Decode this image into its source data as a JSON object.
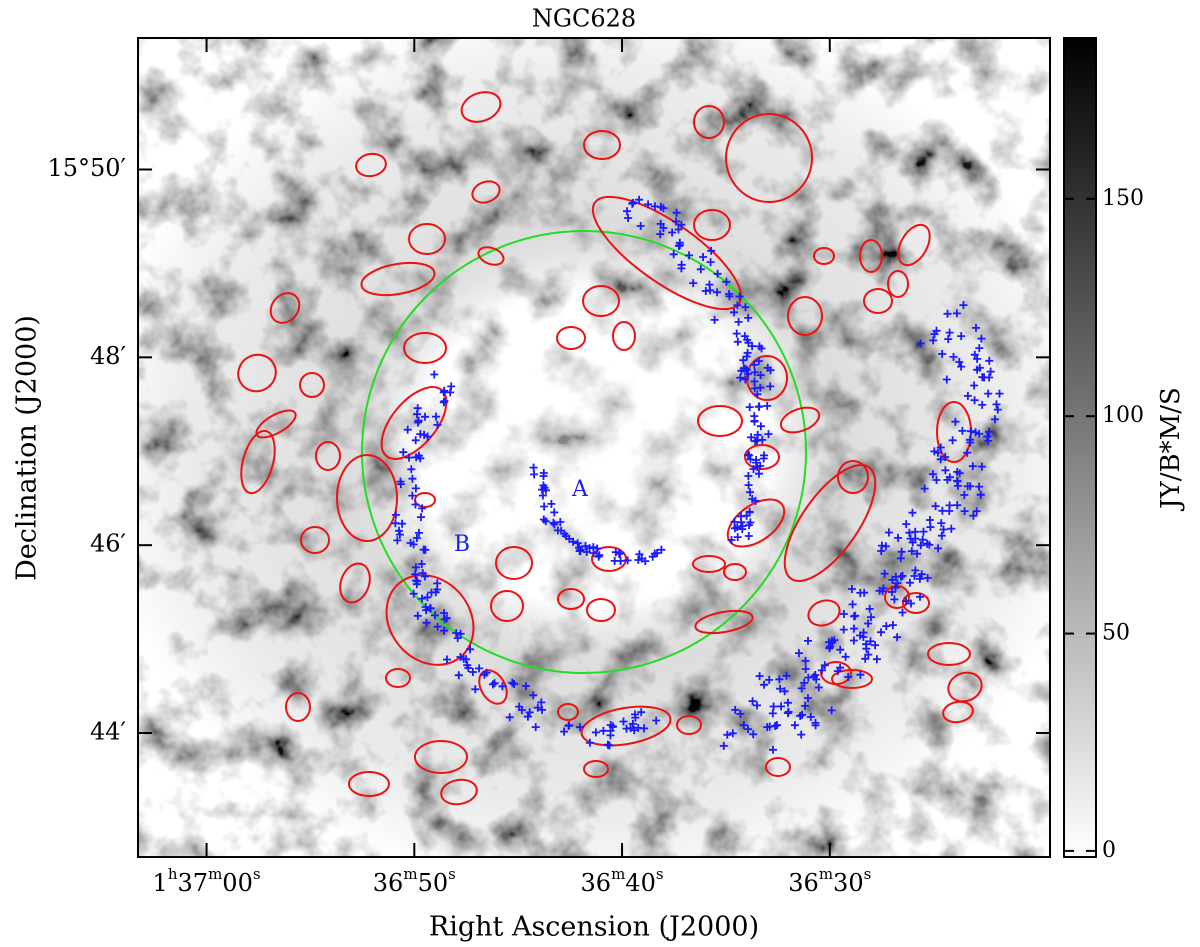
{
  "chart_data": {
    "type": "image",
    "title": "NGC628",
    "x_label": "Right Ascension (J2000)",
    "y_label": "Declination (J2000)",
    "colorbar_label": "JY/B*M/S",
    "xlim": [
      63.3,
      19.4
    ],
    "xticks": [
      {
        "value": 60,
        "label": "1h37m00s"
      },
      {
        "value": 50,
        "label": "36m50s"
      },
      {
        "value": 40,
        "label": "36m40s"
      },
      {
        "value": 30,
        "label": "36m30s"
      }
    ],
    "ylim": [
      42.68,
      51.4
    ],
    "yticks": [
      {
        "value": 50,
        "label": "15°50′"
      },
      {
        "value": 48,
        "label": "48′"
      },
      {
        "value": 46,
        "label": "46′"
      },
      {
        "value": 44,
        "label": "44′"
      }
    ],
    "clim": [
      -1.4,
      187
    ],
    "cticks": [
      0,
      50,
      100,
      150
    ],
    "annotations": [
      "A",
      "B"
    ]
  }
}
